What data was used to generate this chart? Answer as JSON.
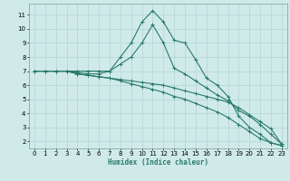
{
  "title": "",
  "xlabel": "Humidex (Indice chaleur)",
  "xlim": [
    -0.5,
    23.5
  ],
  "ylim": [
    1.5,
    11.8
  ],
  "xticks": [
    0,
    1,
    2,
    3,
    4,
    5,
    6,
    7,
    8,
    9,
    10,
    11,
    12,
    13,
    14,
    15,
    16,
    17,
    18,
    19,
    20,
    21,
    22,
    23
  ],
  "yticks": [
    2,
    3,
    4,
    5,
    6,
    7,
    8,
    9,
    10,
    11
  ],
  "bg_color": "#d0eaea",
  "grid_color": "#b8d8d8",
  "line_color": "#2a7a6a",
  "lines": [
    {
      "x": [
        0,
        1,
        2,
        3,
        4,
        5,
        6,
        7,
        8,
        9,
        10,
        11,
        12,
        13,
        14,
        15,
        16,
        17,
        18,
        19,
        20,
        21,
        22,
        23
      ],
      "y": [
        7.0,
        7.0,
        7.0,
        7.0,
        7.0,
        7.0,
        7.0,
        7.0,
        8.0,
        9.0,
        10.5,
        11.3,
        10.5,
        9.2,
        9.0,
        7.8,
        6.5,
        6.0,
        5.2,
        3.8,
        3.0,
        2.5,
        1.9,
        1.7
      ]
    },
    {
      "x": [
        0,
        1,
        2,
        3,
        4,
        5,
        6,
        7,
        8,
        9,
        10,
        11,
        12,
        13,
        14,
        15,
        16,
        17,
        18,
        19,
        20,
        21,
        22,
        23
      ],
      "y": [
        7.0,
        7.0,
        7.0,
        7.0,
        6.9,
        6.8,
        6.8,
        7.0,
        7.5,
        8.0,
        9.0,
        10.3,
        9.0,
        7.2,
        6.8,
        6.3,
        5.8,
        5.3,
        4.9,
        4.2,
        3.8,
        3.2,
        2.5,
        1.8
      ]
    },
    {
      "x": [
        0,
        1,
        2,
        3,
        4,
        5,
        6,
        7,
        8,
        9,
        10,
        11,
        12,
        13,
        14,
        15,
        16,
        17,
        18,
        19,
        20,
        21,
        22,
        23
      ],
      "y": [
        7.0,
        7.0,
        7.0,
        7.0,
        6.8,
        6.7,
        6.6,
        6.5,
        6.4,
        6.3,
        6.2,
        6.1,
        6.0,
        5.8,
        5.6,
        5.4,
        5.2,
        5.0,
        4.8,
        4.4,
        3.9,
        3.4,
        2.9,
        1.8
      ]
    },
    {
      "x": [
        0,
        1,
        2,
        3,
        4,
        5,
        6,
        7,
        8,
        9,
        10,
        11,
        12,
        13,
        14,
        15,
        16,
        17,
        18,
        19,
        20,
        21,
        22,
        23
      ],
      "y": [
        7.0,
        7.0,
        7.0,
        7.0,
        6.8,
        6.7,
        6.6,
        6.5,
        6.3,
        6.1,
        5.9,
        5.7,
        5.5,
        5.2,
        5.0,
        4.7,
        4.4,
        4.1,
        3.7,
        3.2,
        2.7,
        2.2,
        1.9,
        1.7
      ]
    }
  ]
}
